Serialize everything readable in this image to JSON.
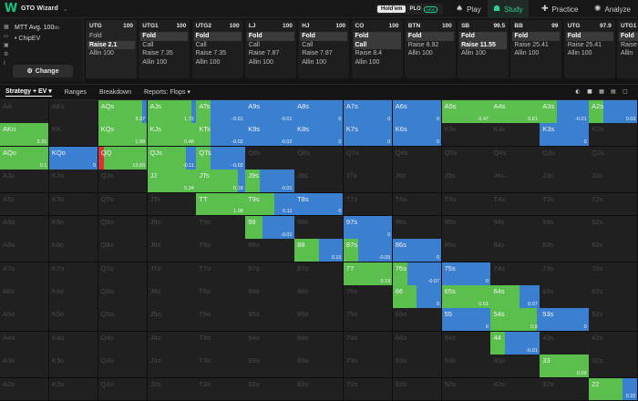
{
  "app": {
    "title": "GTO Wizard"
  },
  "game_toggle": {
    "holdem": "Hold'em",
    "plo": "PLO",
    "plo_badge": "NEW"
  },
  "nav": [
    {
      "label": "Play",
      "icon": "spade-icon",
      "glyph": "♠"
    },
    {
      "label": "Study",
      "icon": "graduation-cap-icon",
      "glyph": "☗"
    },
    {
      "label": "Practice",
      "icon": "gamepad-icon",
      "glyph": "✚"
    },
    {
      "label": "Analyze",
      "icon": "analyze-icon",
      "glyph": "✺"
    }
  ],
  "settings": {
    "format": "MTT",
    "avg": "Avg. 100",
    "avg_unit": "bb",
    "model": "ChipEV",
    "change_label": "Change"
  },
  "positions": [
    {
      "name": "UTG",
      "stack": "100",
      "actions": [
        {
          "label": "Fold",
          "selected": false
        },
        {
          "label": "Raise 2.1",
          "selected": true
        },
        {
          "label": "Allin 100",
          "selected": false
        }
      ]
    },
    {
      "name": "UTG1",
      "stack": "100",
      "actions": [
        {
          "label": "Fold",
          "selected": true
        },
        {
          "label": "Call",
          "selected": false
        },
        {
          "label": "Raise 7.35",
          "selected": false
        },
        {
          "label": "Allin 100",
          "selected": false
        }
      ]
    },
    {
      "name": "UTG2",
      "stack": "100",
      "actions": [
        {
          "label": "Fold",
          "selected": true
        },
        {
          "label": "Call",
          "selected": false
        },
        {
          "label": "Raise 7.35",
          "selected": false
        },
        {
          "label": "Allin 100",
          "selected": false
        }
      ]
    },
    {
      "name": "LJ",
      "stack": "100",
      "actions": [
        {
          "label": "Fold",
          "selected": true
        },
        {
          "label": "Call",
          "selected": false
        },
        {
          "label": "Raise 7.87",
          "selected": false
        },
        {
          "label": "Allin 100",
          "selected": false
        }
      ]
    },
    {
      "name": "HJ",
      "stack": "100",
      "actions": [
        {
          "label": "Fold",
          "selected": true
        },
        {
          "label": "Call",
          "selected": false
        },
        {
          "label": "Raise 7.87",
          "selected": false
        },
        {
          "label": "Allin 100",
          "selected": false
        }
      ]
    },
    {
      "name": "CO",
      "stack": "100",
      "actions": [
        {
          "label": "Fold",
          "selected": true
        },
        {
          "label": "Call",
          "selected": true
        },
        {
          "label": "Raise 8.4",
          "selected": false
        },
        {
          "label": "Allin 100",
          "selected": false
        }
      ]
    },
    {
      "name": "BTN",
      "stack": "100",
      "actions": [
        {
          "label": "Fold",
          "selected": true
        },
        {
          "label": "Raise 8.92",
          "selected": false
        },
        {
          "label": "Allin 100",
          "selected": false
        }
      ]
    },
    {
      "name": "SB",
      "stack": "99.5",
      "actions": [
        {
          "label": "Fold",
          "selected": true
        },
        {
          "label": "Raise 11.55",
          "selected": true
        },
        {
          "label": "Allin 100",
          "selected": false
        }
      ]
    },
    {
      "name": "BB",
      "stack": "99",
      "actions": [
        {
          "label": "Fold",
          "selected": true
        },
        {
          "label": "Raise 25.41",
          "selected": false
        },
        {
          "label": "Allin 100",
          "selected": false
        }
      ]
    },
    {
      "name": "UTG",
      "stack": "97.9",
      "actions": [
        {
          "label": "Fold",
          "selected": true
        },
        {
          "label": "Raise 25.41",
          "selected": false
        },
        {
          "label": "Allin 100",
          "selected": false
        }
      ]
    },
    {
      "name": "UTG1",
      "stack": "100",
      "actions": [
        {
          "label": "Fold",
          "selected": true
        },
        {
          "label": "Raise",
          "selected": false
        },
        {
          "label": "Allin",
          "selected": false
        }
      ]
    }
  ],
  "subtabs": [
    {
      "label": "Strategy + EV ▾",
      "active": true
    },
    {
      "label": "Ranges",
      "active": false
    },
    {
      "label": "Breakdown",
      "active": false
    },
    {
      "label": "Reports: Flops ▾",
      "active": false
    }
  ],
  "colors": {
    "call": "#5bbf4e",
    "raise": "#3b7fd0",
    "allin": "#d93434",
    "fold": "#202020"
  },
  "ranks": [
    "A",
    "K",
    "Q",
    "J",
    "T",
    "9",
    "8",
    "7",
    "6",
    "5",
    "4",
    "3",
    "2"
  ],
  "active_cells": [
    {
      "hand": "AQs",
      "ev": "3.37",
      "call": 0.9,
      "raise": 0.1
    },
    {
      "hand": "AJs",
      "ev": "1.72",
      "call": 0.9,
      "raise": 0.1
    },
    {
      "hand": "ATs",
      "ev": "-0.01",
      "call": 0.3,
      "raise": 0.7
    },
    {
      "hand": "A9s",
      "ev": "-0.01",
      "call": 0.0,
      "raise": 1.0
    },
    {
      "hand": "A8s",
      "ev": "0",
      "call": 0.0,
      "raise": 1.0
    },
    {
      "hand": "A7s",
      "ev": "0",
      "call": 0.0,
      "raise": 1.0
    },
    {
      "hand": "A6s",
      "ev": "0",
      "call": 0.0,
      "raise": 1.0
    },
    {
      "hand": "A5s",
      "ev": "0.47",
      "call": 1.0,
      "raise": 0.0
    },
    {
      "hand": "A4s",
      "ev": "0.81",
      "call": 1.0,
      "raise": 0.0
    },
    {
      "hand": "A3s",
      "ev": "-0.01",
      "call": 0.35,
      "raise": 0.65
    },
    {
      "hand": "A2s",
      "ev": "0.03",
      "call": 0.3,
      "raise": 0.7
    },
    {
      "hand": "AKo",
      "ev": "5.31",
      "call": 1.0,
      "raise": 0.0
    },
    {
      "hand": "KQs",
      "ev": "1.98",
      "call": 1.0,
      "raise": 0.0
    },
    {
      "hand": "KJs",
      "ev": "0.48",
      "call": 1.0,
      "raise": 0.0
    },
    {
      "hand": "KTs",
      "ev": "-0.02",
      "call": 0.3,
      "raise": 0.7
    },
    {
      "hand": "K9s",
      "ev": "-0.02",
      "call": 0.0,
      "raise": 1.0
    },
    {
      "hand": "K8s",
      "ev": "0",
      "call": 0.0,
      "raise": 1.0
    },
    {
      "hand": "K7s",
      "ev": "0",
      "call": 0.0,
      "raise": 1.0
    },
    {
      "hand": "K6s",
      "ev": "0",
      "call": 0.0,
      "raise": 1.0
    },
    {
      "hand": "K3s",
      "ev": "0",
      "call": 0.0,
      "raise": 1.0
    },
    {
      "hand": "AQo",
      "ev": "0.1",
      "call": 1.0,
      "raise": 0.0
    },
    {
      "hand": "KQo",
      "ev": "0",
      "call": 0.0,
      "raise": 1.0
    },
    {
      "hand": "QQ",
      "ev": "13.83",
      "call": 0.88,
      "raise": 0.0,
      "allin": 0.12,
      "allin_first": true
    },
    {
      "hand": "QJs",
      "ev": "-0.11",
      "call": 0.8,
      "raise": 0.2
    },
    {
      "hand": "QTs",
      "ev": "-0.02",
      "call": 0.3,
      "raise": 0.7
    },
    {
      "hand": "JJ",
      "ev": "5.34",
      "call": 1.0,
      "raise": 0.0
    },
    {
      "hand": "JTs",
      "ev": "0.18",
      "call": 0.85,
      "raise": 0.15
    },
    {
      "hand": "J9s",
      "ev": "-0.01",
      "call": 0.3,
      "raise": 0.7
    },
    {
      "hand": "TT",
      "ev": "1.08",
      "call": 1.0,
      "raise": 0.0
    },
    {
      "hand": "T9s",
      "ev": "0.11",
      "call": 0.6,
      "raise": 0.4
    },
    {
      "hand": "T8s",
      "ev": "0",
      "call": 0.0,
      "raise": 1.0
    },
    {
      "hand": "99",
      "ev": "-0.01",
      "call": 0.35,
      "raise": 0.65
    },
    {
      "hand": "97s",
      "ev": "0",
      "call": 0.0,
      "raise": 1.0
    },
    {
      "hand": "88",
      "ev": "0.15",
      "call": 0.5,
      "raise": 0.5
    },
    {
      "hand": "87s",
      "ev": "-0.05",
      "call": 0.3,
      "raise": 0.7
    },
    {
      "hand": "86s",
      "ev": "0",
      "call": 0.0,
      "raise": 1.0
    },
    {
      "hand": "77",
      "ev": "0.19",
      "call": 1.0,
      "raise": 0.0
    },
    {
      "hand": "76s",
      "ev": "-0.07",
      "call": 0.3,
      "raise": 0.7
    },
    {
      "hand": "75s",
      "ev": "0",
      "call": 0.0,
      "raise": 1.0
    },
    {
      "hand": "66",
      "ev": "0",
      "call": 0.5,
      "raise": 0.5
    },
    {
      "hand": "65s",
      "ev": "0.51",
      "call": 1.0,
      "raise": 0.0
    },
    {
      "hand": "64s",
      "ev": "0.07",
      "call": 0.6,
      "raise": 0.4
    },
    {
      "hand": "55",
      "ev": "0",
      "call": 0.0,
      "raise": 1.0
    },
    {
      "hand": "54s",
      "ev": "0.5",
      "call": 0.95,
      "raise": 0.05
    },
    {
      "hand": "53s",
      "ev": "0",
      "call": 0.0,
      "raise": 1.0
    },
    {
      "hand": "44",
      "ev": "-0.01",
      "call": 0.3,
      "raise": 0.7
    },
    {
      "hand": "33",
      "ev": "0.09",
      "call": 1.0,
      "raise": 0.0
    },
    {
      "hand": "22",
      "ev": "0.22",
      "call": 0.7,
      "raise": 0.3
    }
  ]
}
